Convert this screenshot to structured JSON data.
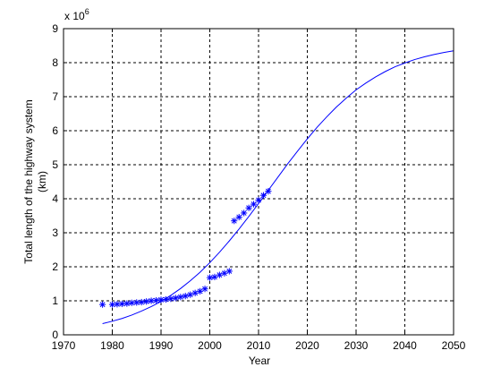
{
  "chart_data": {
    "type": "scatter",
    "xlabel": "Year",
    "ylabel_lines": [
      "Total length of the highway system",
      "(km)"
    ],
    "y_multiplier": {
      "base": "x 10",
      "exponent": "6"
    },
    "xlim": [
      1970,
      2050
    ],
    "ylim": [
      0,
      9
    ],
    "x_ticks": [
      1970,
      1980,
      1990,
      2000,
      2010,
      2020,
      2030,
      2040,
      2050
    ],
    "y_ticks": [
      0,
      1,
      2,
      3,
      4,
      5,
      6,
      7,
      8,
      9
    ],
    "grid": true,
    "marker_color": "#0000ff",
    "line_color": "#0000ff",
    "series": [
      {
        "kind": "markers",
        "marker": "*",
        "x": [
          1978,
          1980,
          1981,
          1982,
          1983,
          1984,
          1985,
          1986,
          1987,
          1988,
          1989,
          1990,
          1991,
          1992,
          1993,
          1994,
          1995,
          1996,
          1997,
          1998,
          1999,
          2000,
          2001,
          2002,
          2003,
          2004,
          2005,
          2006,
          2007,
          2008,
          2009,
          2010,
          2011,
          2012
        ],
        "y": [
          0.89,
          0.89,
          0.9,
          0.91,
          0.92,
          0.94,
          0.95,
          0.96,
          0.98,
          1.0,
          1.01,
          1.03,
          1.04,
          1.06,
          1.08,
          1.11,
          1.14,
          1.18,
          1.23,
          1.28,
          1.35,
          1.68,
          1.7,
          1.76,
          1.81,
          1.87,
          3.35,
          3.46,
          3.58,
          3.73,
          3.84,
          3.96,
          4.1,
          4.22
        ]
      },
      {
        "kind": "line",
        "x": [
          1978,
          1980,
          1982,
          1984,
          1986,
          1988,
          1990,
          1992,
          1994,
          1996,
          1998,
          2000,
          2002,
          2004,
          2006,
          2008,
          2010,
          2012,
          2014,
          2016,
          2018,
          2020,
          2022,
          2024,
          2026,
          2028,
          2030,
          2032,
          2034,
          2036,
          2038,
          2040,
          2042,
          2044,
          2046,
          2048,
          2050
        ],
        "y": [
          0.33,
          0.4,
          0.48,
          0.58,
          0.7,
          0.83,
          0.98,
          1.16,
          1.36,
          1.59,
          1.84,
          2.12,
          2.43,
          2.76,
          3.11,
          3.48,
          3.86,
          4.25,
          4.64,
          5.03,
          5.4,
          5.76,
          6.1,
          6.41,
          6.7,
          6.96,
          7.2,
          7.4,
          7.58,
          7.74,
          7.88,
          7.99,
          8.09,
          8.17,
          8.24,
          8.3,
          8.35
        ]
      }
    ]
  }
}
